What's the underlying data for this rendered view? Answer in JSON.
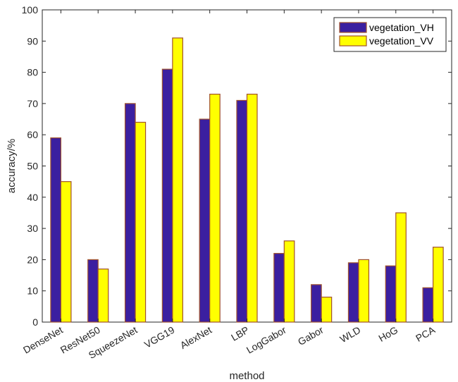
{
  "chart_data": {
    "type": "bar",
    "xlabel": "method",
    "ylabel": "accuracy/%",
    "ylim": [
      0,
      100
    ],
    "yticks": [
      0,
      10,
      20,
      30,
      40,
      50,
      60,
      70,
      80,
      90,
      100
    ],
    "categories": [
      "DenseNet",
      "ResNet50",
      "SqueezeNet",
      "VGG19",
      "AlexNet",
      "LBP",
      "LogGabor",
      "Gabor",
      "WLD",
      "HoG",
      "PCA"
    ],
    "series": [
      {
        "name": "vegetation_VH",
        "color": "#3b1fa0",
        "edge": "#a0522d",
        "values": [
          59,
          20,
          70,
          81,
          65,
          71,
          22,
          12,
          19,
          18,
          11
        ]
      },
      {
        "name": "vegetation_VV",
        "color": "#ffff00",
        "edge": "#a0522d",
        "values": [
          45,
          17,
          64,
          91,
          73,
          73,
          26,
          8,
          20,
          35,
          24
        ]
      }
    ],
    "legend_position": "top-right",
    "grid": false
  }
}
